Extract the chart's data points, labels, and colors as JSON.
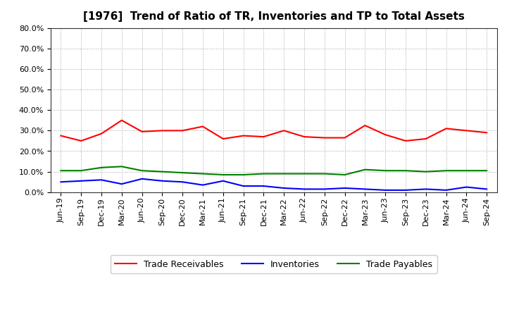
{
  "title": "[1976]  Trend of Ratio of TR, Inventories and TP to Total Assets",
  "x_labels": [
    "Jun-19",
    "Sep-19",
    "Dec-19",
    "Mar-20",
    "Jun-20",
    "Sep-20",
    "Dec-20",
    "Mar-21",
    "Jun-21",
    "Sep-21",
    "Dec-21",
    "Mar-22",
    "Jun-22",
    "Sep-22",
    "Dec-22",
    "Mar-23",
    "Jun-23",
    "Sep-23",
    "Dec-23",
    "Mar-24",
    "Jun-24",
    "Sep-24"
  ],
  "trade_receivables": [
    27.5,
    25.0,
    28.5,
    35.0,
    29.5,
    30.0,
    30.0,
    32.0,
    26.0,
    27.5,
    27.0,
    30.0,
    27.0,
    26.5,
    26.5,
    32.5,
    28.0,
    25.0,
    26.0,
    31.0,
    30.0,
    29.0
  ],
  "inventories": [
    5.0,
    5.5,
    6.0,
    4.0,
    6.5,
    5.5,
    5.0,
    3.5,
    5.5,
    3.0,
    3.0,
    2.0,
    1.5,
    1.5,
    2.0,
    1.5,
    1.0,
    1.0,
    1.5,
    1.0,
    2.5,
    1.5
  ],
  "trade_payables": [
    10.5,
    10.5,
    12.0,
    12.5,
    10.5,
    10.0,
    9.5,
    9.0,
    8.5,
    8.5,
    9.0,
    9.0,
    9.0,
    9.0,
    8.5,
    11.0,
    10.5,
    10.5,
    10.0,
    10.5,
    10.5,
    10.5
  ],
  "tr_color": "#ff0000",
  "inv_color": "#0000ff",
  "tp_color": "#008000",
  "ylim": [
    0,
    80
  ],
  "yticks": [
    0,
    10,
    20,
    30,
    40,
    50,
    60,
    70,
    80
  ],
  "legend_labels": [
    "Trade Receivables",
    "Inventories",
    "Trade Payables"
  ],
  "background_color": "#ffffff",
  "grid_color": "#999999",
  "title_fontsize": 11,
  "tick_fontsize": 8,
  "legend_fontsize": 9
}
